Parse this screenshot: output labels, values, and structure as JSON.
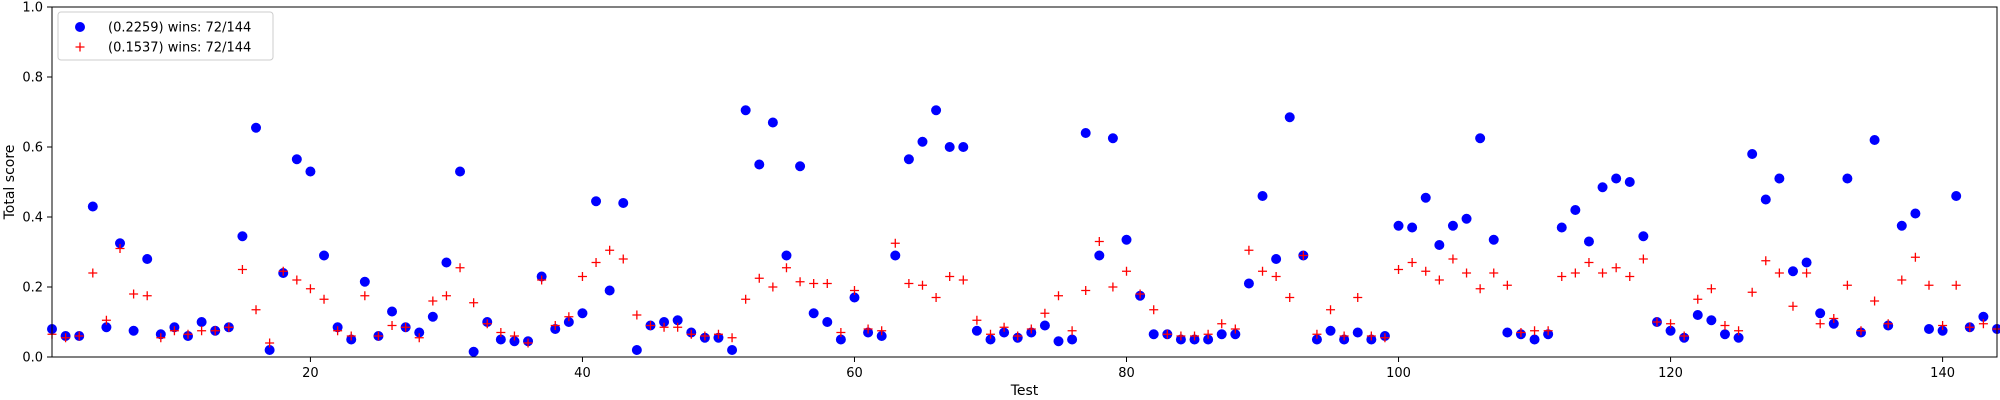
{
  "chart_data": {
    "type": "scatter",
    "xlabel": "Test",
    "ylabel": "Total score",
    "xlim": [
      1,
      144
    ],
    "ylim": [
      0,
      1.0
    ],
    "xticks": [
      20,
      40,
      60,
      80,
      100,
      120,
      140
    ],
    "yticks": [
      0.0,
      0.2,
      0.4,
      0.6,
      0.8,
      1.0
    ],
    "ytick_labels": [
      "0.0",
      "0.2",
      "0.4",
      "0.6",
      "0.8",
      "1.0"
    ],
    "grid": false,
    "legend_position": "top-left",
    "legend": [
      {
        "label": "(0.2259) wins: 72/144",
        "marker": "circle",
        "color": "#0000ff"
      },
      {
        "label": "(0.1537) wins: 72/144",
        "marker": "plus",
        "color": "#ff0000"
      }
    ],
    "x": [
      1,
      2,
      3,
      4,
      5,
      6,
      7,
      8,
      9,
      10,
      11,
      12,
      13,
      14,
      15,
      16,
      17,
      18,
      19,
      20,
      21,
      22,
      23,
      24,
      25,
      26,
      27,
      28,
      29,
      30,
      31,
      32,
      33,
      34,
      35,
      36,
      37,
      38,
      39,
      40,
      41,
      42,
      43,
      44,
      45,
      46,
      47,
      48,
      49,
      50,
      51,
      52,
      53,
      54,
      55,
      56,
      57,
      58,
      59,
      60,
      61,
      62,
      63,
      64,
      65,
      66,
      67,
      68,
      69,
      70,
      71,
      72,
      73,
      74,
      75,
      76,
      77,
      78,
      79,
      80,
      81,
      82,
      83,
      84,
      85,
      86,
      87,
      88,
      89,
      90,
      91,
      92,
      93,
      94,
      95,
      96,
      97,
      98,
      99,
      100,
      101,
      102,
      103,
      104,
      105,
      106,
      107,
      108,
      109,
      110,
      111,
      112,
      113,
      114,
      115,
      116,
      117,
      118,
      119,
      120,
      121,
      122,
      123,
      124,
      125,
      126,
      127,
      128,
      129,
      130,
      131,
      132,
      133,
      134,
      135,
      136,
      137,
      138,
      139,
      140,
      141,
      142,
      143,
      144
    ],
    "series": [
      {
        "name": "(0.2259) wins: 72/144",
        "values": [
          0.08,
          0.06,
          0.06,
          0.43,
          0.085,
          0.325,
          0.075,
          0.28,
          0.065,
          0.085,
          0.06,
          0.1,
          0.075,
          0.085,
          0.345,
          0.655,
          0.02,
          0.24,
          0.565,
          0.53,
          0.29,
          0.085,
          0.05,
          0.215,
          0.06,
          0.13,
          0.085,
          0.07,
          0.115,
          0.27,
          0.53,
          0.015,
          0.1,
          0.05,
          0.045,
          0.045,
          0.23,
          0.08,
          0.1,
          0.125,
          0.445,
          0.19,
          0.44,
          0.02,
          0.09,
          0.1,
          0.105,
          0.07,
          0.055,
          0.055,
          0.02,
          0.705,
          0.55,
          0.67,
          0.29,
          0.545,
          0.125,
          0.1,
          0.05,
          0.17,
          0.07,
          0.06,
          0.29,
          0.565,
          0.615,
          0.705,
          0.6,
          0.6,
          0.075,
          0.05,
          0.07,
          0.055,
          0.07,
          0.09,
          0.045,
          0.05,
          0.64,
          0.29,
          0.625,
          0.335,
          0.175,
          0.065,
          0.065,
          0.05,
          0.05,
          0.05,
          0.065,
          0.065,
          0.21,
          0.46,
          0.28,
          0.685,
          0.29,
          0.05,
          0.075,
          0.05,
          0.07,
          0.05,
          0.06,
          0.375,
          0.37,
          0.455,
          0.32,
          0.375,
          0.395,
          0.625,
          0.335,
          0.07,
          0.065,
          0.05,
          0.065,
          0.37,
          0.42,
          0.33,
          0.485,
          0.51,
          0.5,
          0.345,
          0.1,
          0.075,
          0.055,
          0.12,
          0.105,
          0.065,
          0.055,
          0.58,
          0.45,
          0.51,
          0.245,
          0.27,
          0.125,
          0.095,
          0.51,
          0.07,
          0.62,
          0.09,
          0.375,
          0.41,
          0.08,
          0.075,
          0.46,
          0.085,
          0.115,
          0.08
        ]
      },
      {
        "name": "(0.1537) wins: 72/144",
        "values": [
          0.065,
          0.055,
          0.06,
          0.24,
          0.105,
          0.31,
          0.18,
          0.175,
          0.055,
          0.075,
          0.065,
          0.075,
          0.075,
          0.085,
          0.25,
          0.135,
          0.04,
          0.245,
          0.22,
          0.195,
          0.165,
          0.075,
          0.06,
          0.175,
          0.06,
          0.09,
          0.085,
          0.055,
          0.16,
          0.175,
          0.255,
          0.155,
          0.095,
          0.07,
          0.06,
          0.04,
          0.22,
          0.09,
          0.115,
          0.23,
          0.27,
          0.305,
          0.28,
          0.12,
          0.09,
          0.085,
          0.085,
          0.065,
          0.06,
          0.065,
          0.055,
          0.165,
          0.225,
          0.2,
          0.255,
          0.215,
          0.21,
          0.21,
          0.07,
          0.19,
          0.08,
          0.075,
          0.325,
          0.21,
          0.205,
          0.17,
          0.23,
          0.22,
          0.105,
          0.065,
          0.085,
          0.06,
          0.08,
          0.125,
          0.175,
          0.075,
          0.19,
          0.33,
          0.2,
          0.245,
          0.18,
          0.135,
          0.065,
          0.06,
          0.06,
          0.065,
          0.095,
          0.08,
          0.305,
          0.245,
          0.23,
          0.17,
          0.29,
          0.065,
          0.135,
          0.06,
          0.17,
          0.06,
          0.055,
          0.25,
          0.27,
          0.245,
          0.22,
          0.28,
          0.24,
          0.195,
          0.24,
          0.205,
          0.07,
          0.075,
          0.075,
          0.23,
          0.24,
          0.27,
          0.24,
          0.255,
          0.23,
          0.28,
          0.1,
          0.095,
          0.06,
          0.165,
          0.195,
          0.09,
          0.075,
          0.185,
          0.275,
          0.24,
          0.145,
          0.24,
          0.095,
          0.11,
          0.205,
          0.075,
          0.16,
          0.095,
          0.22,
          0.285,
          0.205,
          0.09,
          0.205,
          0.085,
          0.095,
          0.08
        ]
      }
    ]
  }
}
